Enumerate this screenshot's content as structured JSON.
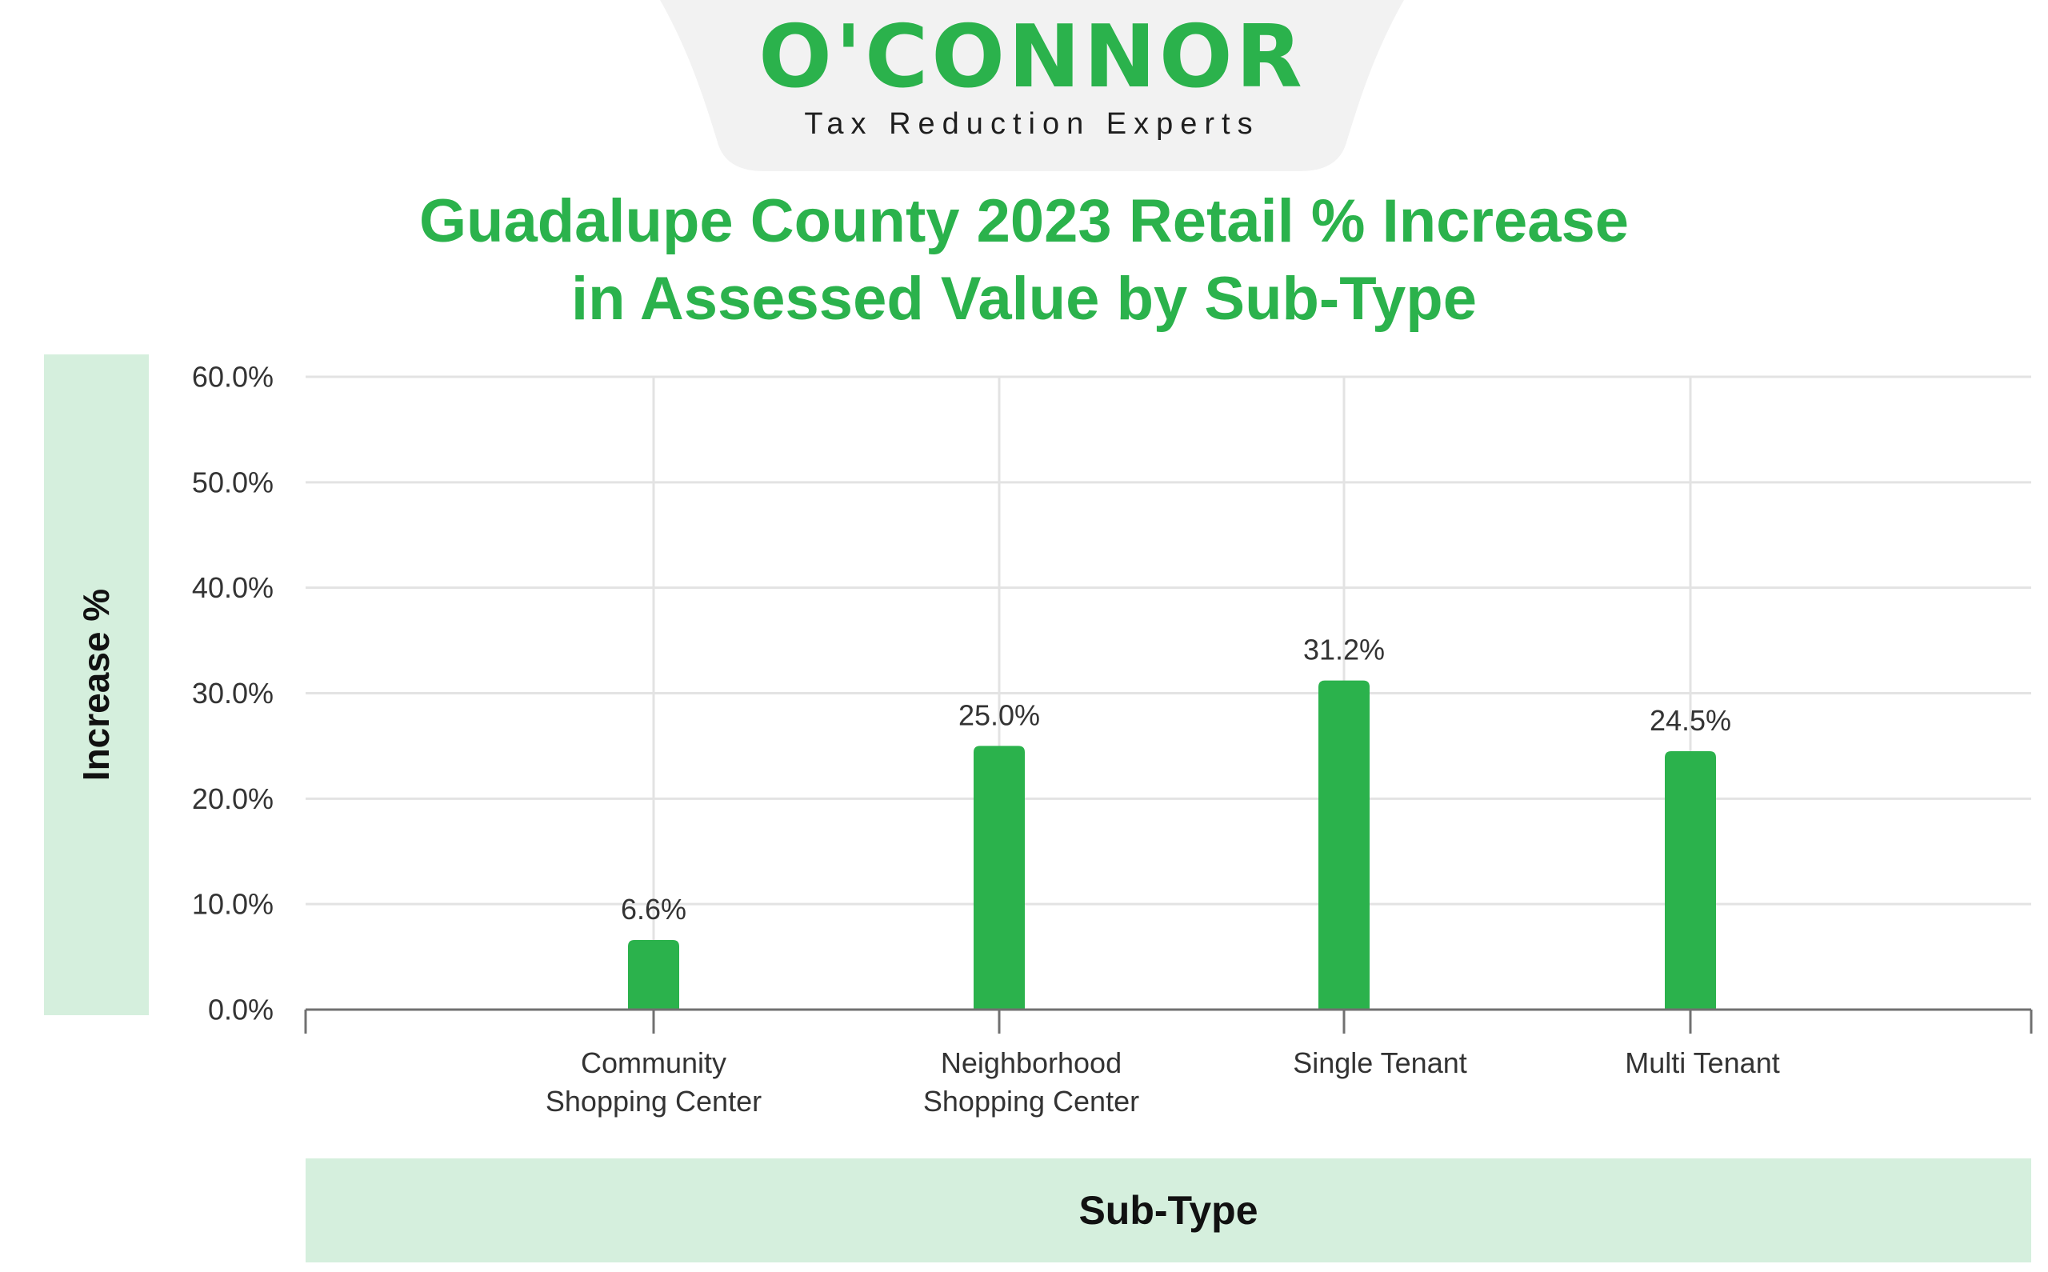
{
  "brand": {
    "name": "O'CONNOR",
    "tagline": "Tax Reduction Experts",
    "color": "#2bb24c"
  },
  "chart_data": {
    "type": "bar",
    "title_lines": [
      "Guadalupe County 2023 Retail % Increase",
      "in Assessed Value by Sub-Type"
    ],
    "xlabel": "Sub-Type",
    "ylabel": "Increase %",
    "categories": [
      [
        "Community",
        "Shopping Center"
      ],
      [
        "Neighborhood",
        "Shopping Center"
      ],
      [
        "Single Tenant"
      ],
      [
        "Multi Tenant"
      ]
    ],
    "values": [
      6.6,
      25.0,
      31.2,
      24.5
    ],
    "value_labels": [
      "6.6%",
      "25.0%",
      "31.2%",
      "24.5%"
    ],
    "ylim": [
      0,
      60
    ],
    "yticks": [
      0,
      10,
      20,
      30,
      40,
      50,
      60
    ],
    "ytick_labels": [
      "0.0%",
      "10.0%",
      "20.0%",
      "30.0%",
      "40.0%",
      "50.0%",
      "60.0%"
    ],
    "grid": true,
    "bar_color": "#2bb24c",
    "label_band_color": "#d5efdd"
  }
}
